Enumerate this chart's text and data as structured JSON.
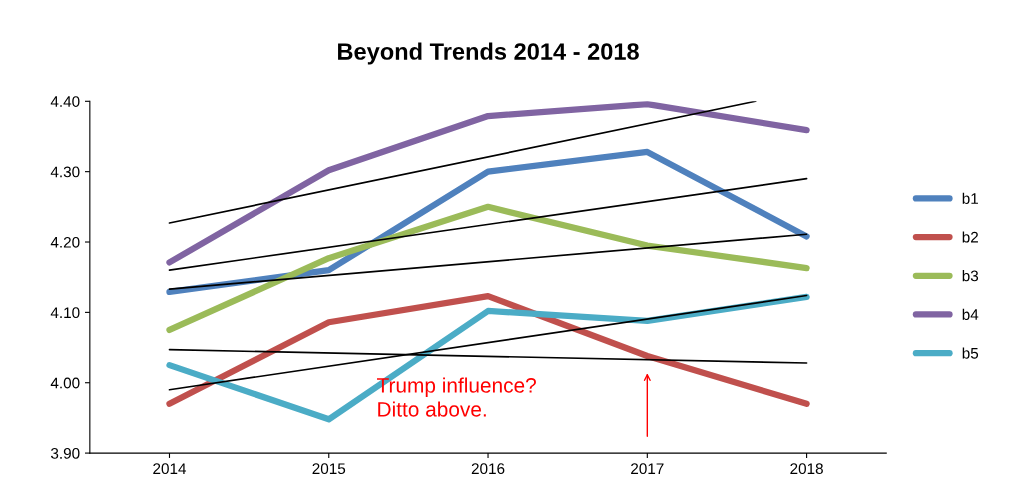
{
  "chart_data": {
    "type": "line",
    "title": "Beyond Trends 2014 - 2018",
    "x": [
      2014,
      2015,
      2016,
      2017,
      2018
    ],
    "xlim": [
      2013.5,
      2018.5
    ],
    "xticks": [
      2014,
      2015,
      2016,
      2017,
      2018
    ],
    "ylim": [
      3.9,
      4.4
    ],
    "yticks": [
      {
        "value": 3.9,
        "label": "3.90"
      },
      {
        "value": 4.0,
        "label": "4.00"
      },
      {
        "value": 4.1,
        "label": "4.10"
      },
      {
        "value": 4.2,
        "label": "4.20"
      },
      {
        "value": 4.3,
        "label": "4.30"
      },
      {
        "value": 4.4,
        "label": "4.40"
      }
    ],
    "grid": false,
    "legend": "right",
    "marker": "none",
    "series": [
      {
        "name": "b1",
        "color": "#4f81bd",
        "values": [
          4.129,
          4.16,
          4.3,
          4.328,
          4.208
        ]
      },
      {
        "name": "b2",
        "color": "#c0504d",
        "values": [
          3.97,
          4.086,
          4.123,
          4.038,
          3.97
        ]
      },
      {
        "name": "b3",
        "color": "#9bbb59",
        "values": [
          4.075,
          4.177,
          4.25,
          4.195,
          4.163
        ]
      },
      {
        "name": "b4",
        "color": "#8064a2",
        "values": [
          4.171,
          4.302,
          4.379,
          4.396,
          4.359
        ]
      },
      {
        "name": "b5",
        "color": "#4bacc6",
        "values": [
          4.025,
          3.948,
          4.102,
          4.088,
          4.122
        ]
      },
      {
        "type": "line",
        "color": "#000000",
        "x": [
          2014,
          2018
        ],
        "values": [
          4.16,
          4.29
        ]
      },
      {
        "type": "line",
        "color": "#000000",
        "x": [
          2014,
          2018
        ],
        "values": [
          4.047,
          4.028
        ]
      },
      {
        "type": "line",
        "color": "#000000",
        "x": [
          2014,
          2018
        ],
        "values": [
          4.133,
          4.211
        ]
      },
      {
        "type": "line",
        "color": "#000000",
        "x": [
          2014,
          2017.68
        ],
        "values": [
          4.227,
          4.4
        ]
      },
      {
        "type": "line",
        "color": "#000000",
        "x": [
          2014,
          2018
        ],
        "values": [
          3.99,
          4.124
        ]
      }
    ],
    "annotations": [
      "Trump influence?\nDitto above."
    ]
  }
}
